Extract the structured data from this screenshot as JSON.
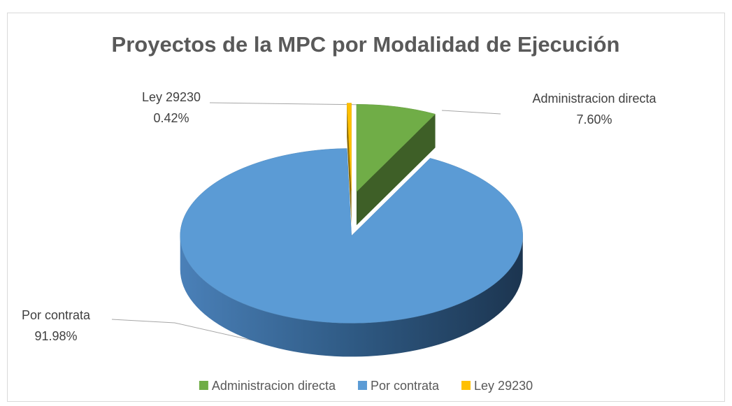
{
  "chart_data": {
    "type": "pie3d",
    "title": "Proyectos de la MPC por Modalidad de Ejecución",
    "categories": [
      "Administracion directa",
      "Por contrata",
      "Ley 29230"
    ],
    "values": [
      7.6,
      91.98,
      0.42
    ],
    "value_labels": [
      "7.60%",
      "91.98%",
      "0.42%"
    ],
    "colors": [
      "#70ad47",
      "#5b9bd5",
      "#ffc000"
    ],
    "legend": "bottom"
  }
}
